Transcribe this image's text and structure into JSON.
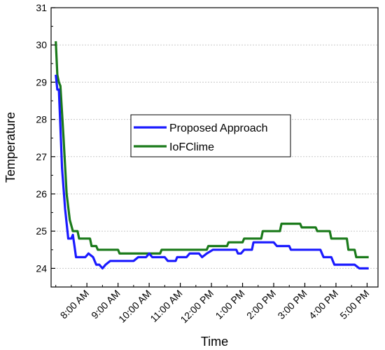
{
  "chart_data": {
    "type": "line",
    "xlabel": "Time",
    "ylabel": "Temperature",
    "ylim": [
      24,
      31
    ],
    "xlim": [
      6.85,
      17.35
    ],
    "y_ticks": [
      24,
      25,
      26,
      27,
      28,
      29,
      30,
      31
    ],
    "x_tick_labels": [
      {
        "x": 8,
        "label": "8:00 AM"
      },
      {
        "x": 9,
        "label": "9:00 AM"
      },
      {
        "x": 10,
        "label": "10:00 AM"
      },
      {
        "x": 11,
        "label": "11:00 AM"
      },
      {
        "x": 12,
        "label": "12:00 PM"
      },
      {
        "x": 13,
        "label": "1:00 PM"
      },
      {
        "x": 14,
        "label": "2:00 PM"
      },
      {
        "x": 15,
        "label": "3:00 PM"
      },
      {
        "x": 16,
        "label": "4:00 PM"
      },
      {
        "x": 17,
        "label": "5:00 PM"
      }
    ],
    "grid": "horizontal",
    "legend_position": "center",
    "series": [
      {
        "name": "Proposed Approach",
        "color": "#1a1aff",
        "points": [
          [
            7.0,
            29.2
          ],
          [
            7.05,
            28.8
          ],
          [
            7.1,
            28.8
          ],
          [
            7.15,
            27.8
          ],
          [
            7.2,
            26.7
          ],
          [
            7.3,
            25.6
          ],
          [
            7.4,
            24.8
          ],
          [
            7.5,
            24.8
          ],
          [
            7.55,
            24.9
          ],
          [
            7.6,
            24.6
          ],
          [
            7.65,
            24.3
          ],
          [
            7.7,
            24.3
          ],
          [
            7.8,
            24.3
          ],
          [
            7.95,
            24.3
          ],
          [
            8.05,
            24.4
          ],
          [
            8.2,
            24.3
          ],
          [
            8.3,
            24.1
          ],
          [
            8.4,
            24.1
          ],
          [
            8.5,
            24.0
          ],
          [
            8.6,
            24.1
          ],
          [
            8.75,
            24.2
          ],
          [
            9.0,
            24.2
          ],
          [
            9.5,
            24.2
          ],
          [
            9.65,
            24.3
          ],
          [
            9.9,
            24.3
          ],
          [
            10.0,
            24.4
          ],
          [
            10.1,
            24.3
          ],
          [
            10.5,
            24.3
          ],
          [
            10.6,
            24.2
          ],
          [
            10.85,
            24.2
          ],
          [
            10.9,
            24.3
          ],
          [
            11.2,
            24.3
          ],
          [
            11.3,
            24.4
          ],
          [
            11.6,
            24.4
          ],
          [
            11.7,
            24.3
          ],
          [
            11.85,
            24.4
          ],
          [
            12.05,
            24.5
          ],
          [
            12.8,
            24.5
          ],
          [
            12.85,
            24.4
          ],
          [
            12.95,
            24.4
          ],
          [
            13.05,
            24.5
          ],
          [
            13.3,
            24.5
          ],
          [
            13.35,
            24.7
          ],
          [
            14.0,
            24.7
          ],
          [
            14.1,
            24.6
          ],
          [
            14.5,
            24.6
          ],
          [
            14.55,
            24.5
          ],
          [
            15.5,
            24.5
          ],
          [
            15.6,
            24.3
          ],
          [
            15.85,
            24.3
          ],
          [
            15.95,
            24.1
          ],
          [
            16.6,
            24.1
          ],
          [
            16.75,
            24.0
          ],
          [
            17.05,
            24.0
          ]
        ]
      },
      {
        "name": "IoFClime",
        "color": "#1a7a1a",
        "points": [
          [
            7.0,
            30.1
          ],
          [
            7.05,
            29.2
          ],
          [
            7.1,
            29.0
          ],
          [
            7.15,
            28.9
          ],
          [
            7.25,
            27.5
          ],
          [
            7.35,
            26.0
          ],
          [
            7.45,
            25.3
          ],
          [
            7.55,
            25.0
          ],
          [
            7.7,
            25.0
          ],
          [
            7.75,
            24.8
          ],
          [
            8.1,
            24.8
          ],
          [
            8.15,
            24.6
          ],
          [
            8.3,
            24.6
          ],
          [
            8.35,
            24.5
          ],
          [
            9.0,
            24.5
          ],
          [
            9.05,
            24.4
          ],
          [
            10.35,
            24.4
          ],
          [
            10.4,
            24.5
          ],
          [
            11.85,
            24.5
          ],
          [
            11.9,
            24.6
          ],
          [
            12.5,
            24.6
          ],
          [
            12.55,
            24.7
          ],
          [
            13.0,
            24.7
          ],
          [
            13.05,
            24.8
          ],
          [
            13.6,
            24.8
          ],
          [
            13.65,
            25.0
          ],
          [
            14.2,
            25.0
          ],
          [
            14.25,
            25.2
          ],
          [
            14.85,
            25.2
          ],
          [
            14.9,
            25.1
          ],
          [
            15.35,
            25.1
          ],
          [
            15.4,
            25.0
          ],
          [
            15.8,
            25.0
          ],
          [
            15.85,
            24.8
          ],
          [
            16.35,
            24.8
          ],
          [
            16.4,
            24.5
          ],
          [
            16.6,
            24.5
          ],
          [
            16.65,
            24.3
          ],
          [
            17.05,
            24.3
          ]
        ]
      }
    ]
  }
}
